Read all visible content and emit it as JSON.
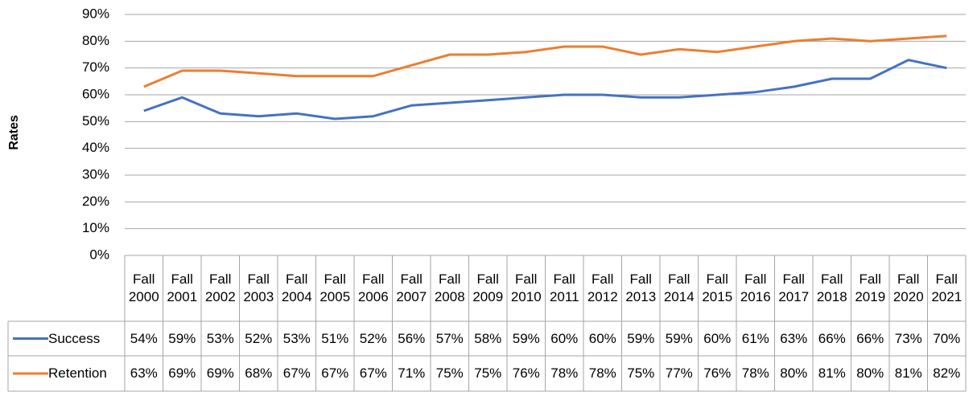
{
  "chart_data": {
    "type": "line",
    "y_label": "Rates",
    "categories": [
      "Fall 2000",
      "Fall 2001",
      "Fall 2002",
      "Fall 2003",
      "Fall 2004",
      "Fall 2005",
      "Fall 2006",
      "Fall 2007",
      "Fall 2008",
      "Fall 2009",
      "Fall 2010",
      "Fall 2011",
      "Fall 2012",
      "Fall 2013",
      "Fall 2014",
      "Fall 2015",
      "Fall 2016",
      "Fall 2017",
      "Fall 2018",
      "Fall 2019",
      "Fall 2020",
      "Fall 2021"
    ],
    "series": [
      {
        "name": "Success",
        "color": "#4472c4",
        "values": [
          54,
          59,
          53,
          52,
          53,
          51,
          52,
          56,
          57,
          58,
          59,
          60,
          60,
          59,
          59,
          60,
          61,
          63,
          66,
          66,
          73,
          70
        ],
        "value_labels": [
          "54%",
          "59%",
          "53%",
          "52%",
          "53%",
          "51%",
          "52%",
          "56%",
          "57%",
          "58%",
          "59%",
          "60%",
          "60%",
          "59%",
          "59%",
          "60%",
          "61%",
          "63%",
          "66%",
          "66%",
          "73%",
          "70%"
        ]
      },
      {
        "name": "Retention",
        "color": "#ed7d31",
        "values": [
          63,
          69,
          69,
          68,
          67,
          67,
          67,
          71,
          75,
          75,
          76,
          78,
          78,
          75,
          77,
          76,
          78,
          80,
          81,
          80,
          81,
          82
        ],
        "value_labels": [
          "63%",
          "69%",
          "69%",
          "68%",
          "67%",
          "67%",
          "67%",
          "71%",
          "75%",
          "75%",
          "76%",
          "78%",
          "78%",
          "75%",
          "77%",
          "76%",
          "78%",
          "80%",
          "81%",
          "80%",
          "81%",
          "82%"
        ]
      }
    ],
    "ylim": [
      0,
      90
    ],
    "yticks": [
      {
        "value": 0,
        "label": "0%"
      },
      {
        "value": 10,
        "label": "10%"
      },
      {
        "value": 20,
        "label": "20%"
      },
      {
        "value": 30,
        "label": "30%"
      },
      {
        "value": 40,
        "label": "40%"
      },
      {
        "value": 50,
        "label": "50%"
      },
      {
        "value": 60,
        "label": "60%"
      },
      {
        "value": 70,
        "label": "70%"
      },
      {
        "value": 80,
        "label": "80%"
      },
      {
        "value": 90,
        "label": "90%"
      }
    ],
    "grid": true
  }
}
